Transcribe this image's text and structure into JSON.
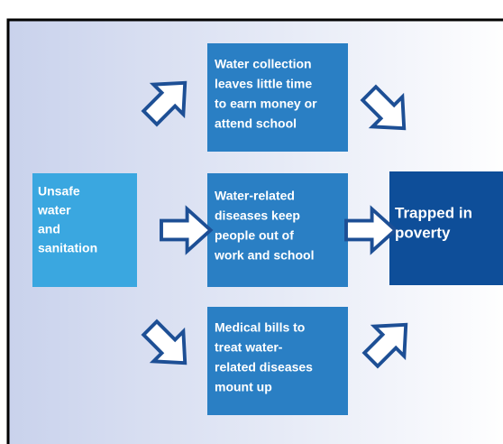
{
  "nodes": [
    {
      "lines": [
        "Unsafe",
        "water",
        "and",
        "sanitation"
      ]
    },
    {
      "lines": [
        "Water collection",
        "leaves little time",
        "to earn money or",
        "attend school"
      ]
    },
    {
      "lines": [
        "Water-related",
        "diseases keep",
        "people out of",
        "work and school"
      ]
    },
    {
      "lines": [
        "Medical bills to",
        "treat water-",
        "related diseases",
        "mount up"
      ]
    },
    {
      "lines": [
        "Trapped in",
        "poverty"
      ]
    }
  ]
}
